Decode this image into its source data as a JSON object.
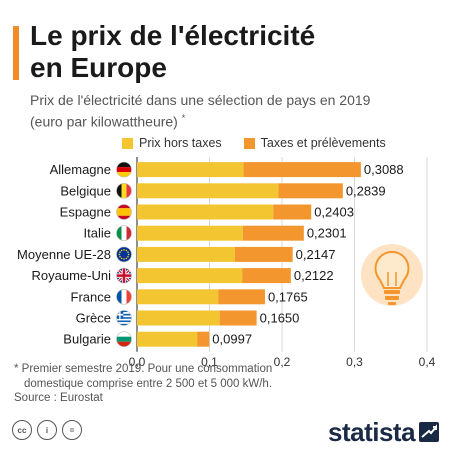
{
  "header": {
    "title_line1": "Le prix de l'électricité",
    "title_line2": "en Europe",
    "subtitle_line1": "Prix de l'électricité dans une sélection de pays en 2019",
    "subtitle_line2": "(euro par kilowattheure)",
    "subtitle_mark": "*"
  },
  "colors": {
    "accent": "#f28c28",
    "series_hors_taxes": "#f2c531",
    "series_taxes": "#f2962d"
  },
  "chart_data": {
    "type": "bar",
    "orientation": "horizontal",
    "stacked": true,
    "categories": [
      "Allemagne",
      "Belgique",
      "Espagne",
      "Italie",
      "Moyenne UE-28",
      "Royaume-Uni",
      "France",
      "Grèce",
      "Bulgarie"
    ],
    "flag_icons": [
      "flag-germany-icon",
      "flag-belgium-icon",
      "flag-spain-icon",
      "flag-italy-icon",
      "flag-eu-icon",
      "flag-uk-icon",
      "flag-france-icon",
      "flag-greece-icon",
      "flag-bulgaria-icon"
    ],
    "series": [
      {
        "name": "Prix hors taxes",
        "values": [
          0.147,
          0.195,
          0.188,
          0.146,
          0.135,
          0.145,
          0.112,
          0.114,
          0.083
        ]
      },
      {
        "name": "Taxes et prélèvements",
        "values": [
          0.1618,
          0.0889,
          0.0523,
          0.0841,
          0.0797,
          0.0672,
          0.0645,
          0.051,
          0.0167
        ]
      }
    ],
    "totals": [
      0.3088,
      0.2839,
      0.2403,
      0.2301,
      0.2147,
      0.2122,
      0.1765,
      0.165,
      0.0997
    ],
    "total_labels": [
      "0,3088",
      "0,2839",
      "0,2403",
      "0,2301",
      "0,2147",
      "0,2122",
      "0,1765",
      "0,1650",
      "0,0997"
    ],
    "xlim": [
      0,
      0.4
    ],
    "xticks": [
      0,
      0.1,
      0.2,
      0.3,
      0.4
    ],
    "xtick_labels": [
      "0,0",
      "0,1",
      "0,2",
      "0,3",
      "0,4"
    ],
    "grid": true,
    "legend_position": "top"
  },
  "notes": {
    "line1": "* Premier semestre 2019. Pour une consommation",
    "line2": "domestique comprise entre 2 500 et 5 000 kW/h.",
    "line3": "Source : Eurostat"
  },
  "footer": {
    "brand": "statista",
    "license_icons": [
      "cc-icon",
      "by-icon",
      "nd-icon"
    ],
    "license_labels": [
      "cc",
      "i",
      "="
    ]
  }
}
